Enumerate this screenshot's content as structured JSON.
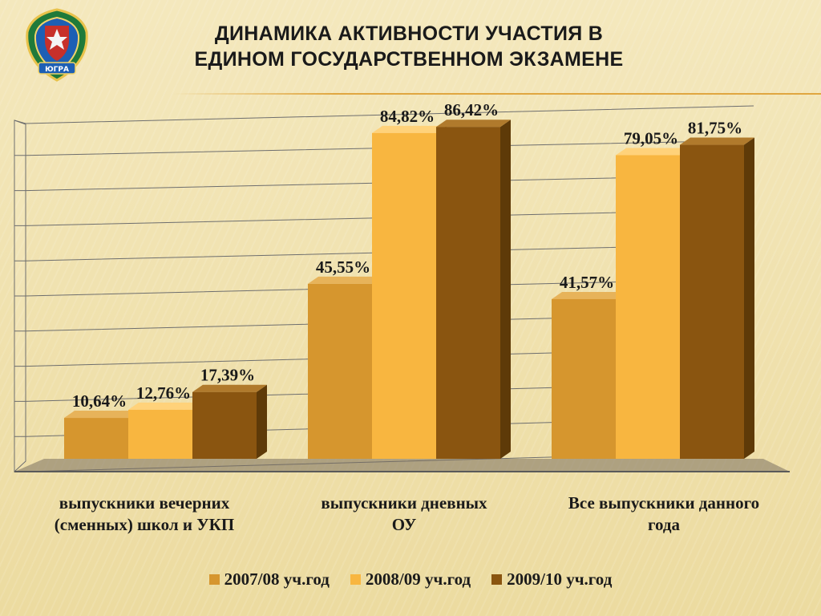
{
  "header": {
    "title_line1": "ДИНАМИКА АКТИВНОСТИ УЧАСТИЯ В",
    "title_line2": "ЕДИНОМ ГОСУДАРСТВЕННОМ ЭКЗАМЕНЕ",
    "emblem_text": "ЮГРА"
  },
  "colors": {
    "series": [
      "#d6962e",
      "#f8b640",
      "#8a5510"
    ],
    "series_dark": [
      "#9a6a1c",
      "#c48a22",
      "#5e3a08"
    ],
    "series_light": [
      "#e7b35a",
      "#ffd27a",
      "#b07a2c"
    ],
    "grid": "#6e6e6e",
    "floor": "#5a5a5a"
  },
  "chart_data": {
    "type": "bar",
    "title": "ДИНАМИКА АКТИВНОСТИ УЧАСТИЯ В ЕДИНОМ ГОСУДАРСТВЕННОМ ЭКЗАМЕНЕ",
    "categories": [
      "выпускники вечерних (сменных) школ и УКП",
      "выпускники дневных ОУ",
      "Все выпускники данного года"
    ],
    "series": [
      {
        "name": "2007/08 уч.год",
        "values": [
          10.64,
          45.55,
          41.57
        ],
        "labels": [
          "10,64%",
          "45,55%",
          "41,57%"
        ]
      },
      {
        "name": "2008/09 уч.год",
        "values": [
          12.76,
          84.82,
          79.05
        ],
        "labels": [
          "12,76%",
          "84,82%",
          "79,05%"
        ]
      },
      {
        "name": "2009/10 уч.год",
        "values": [
          17.39,
          86.42,
          81.75
        ],
        "labels": [
          "17,39%",
          "86,42%",
          "81,75%"
        ]
      }
    ],
    "ylim": [
      0,
      90
    ],
    "grid": true,
    "legend": "bottom"
  },
  "category_lines": [
    [
      "выпускники вечерних",
      "(сменных) школ и УКП"
    ],
    [
      "выпускники дневных",
      "ОУ"
    ],
    [
      "Все выпускники данного",
      "года"
    ]
  ]
}
